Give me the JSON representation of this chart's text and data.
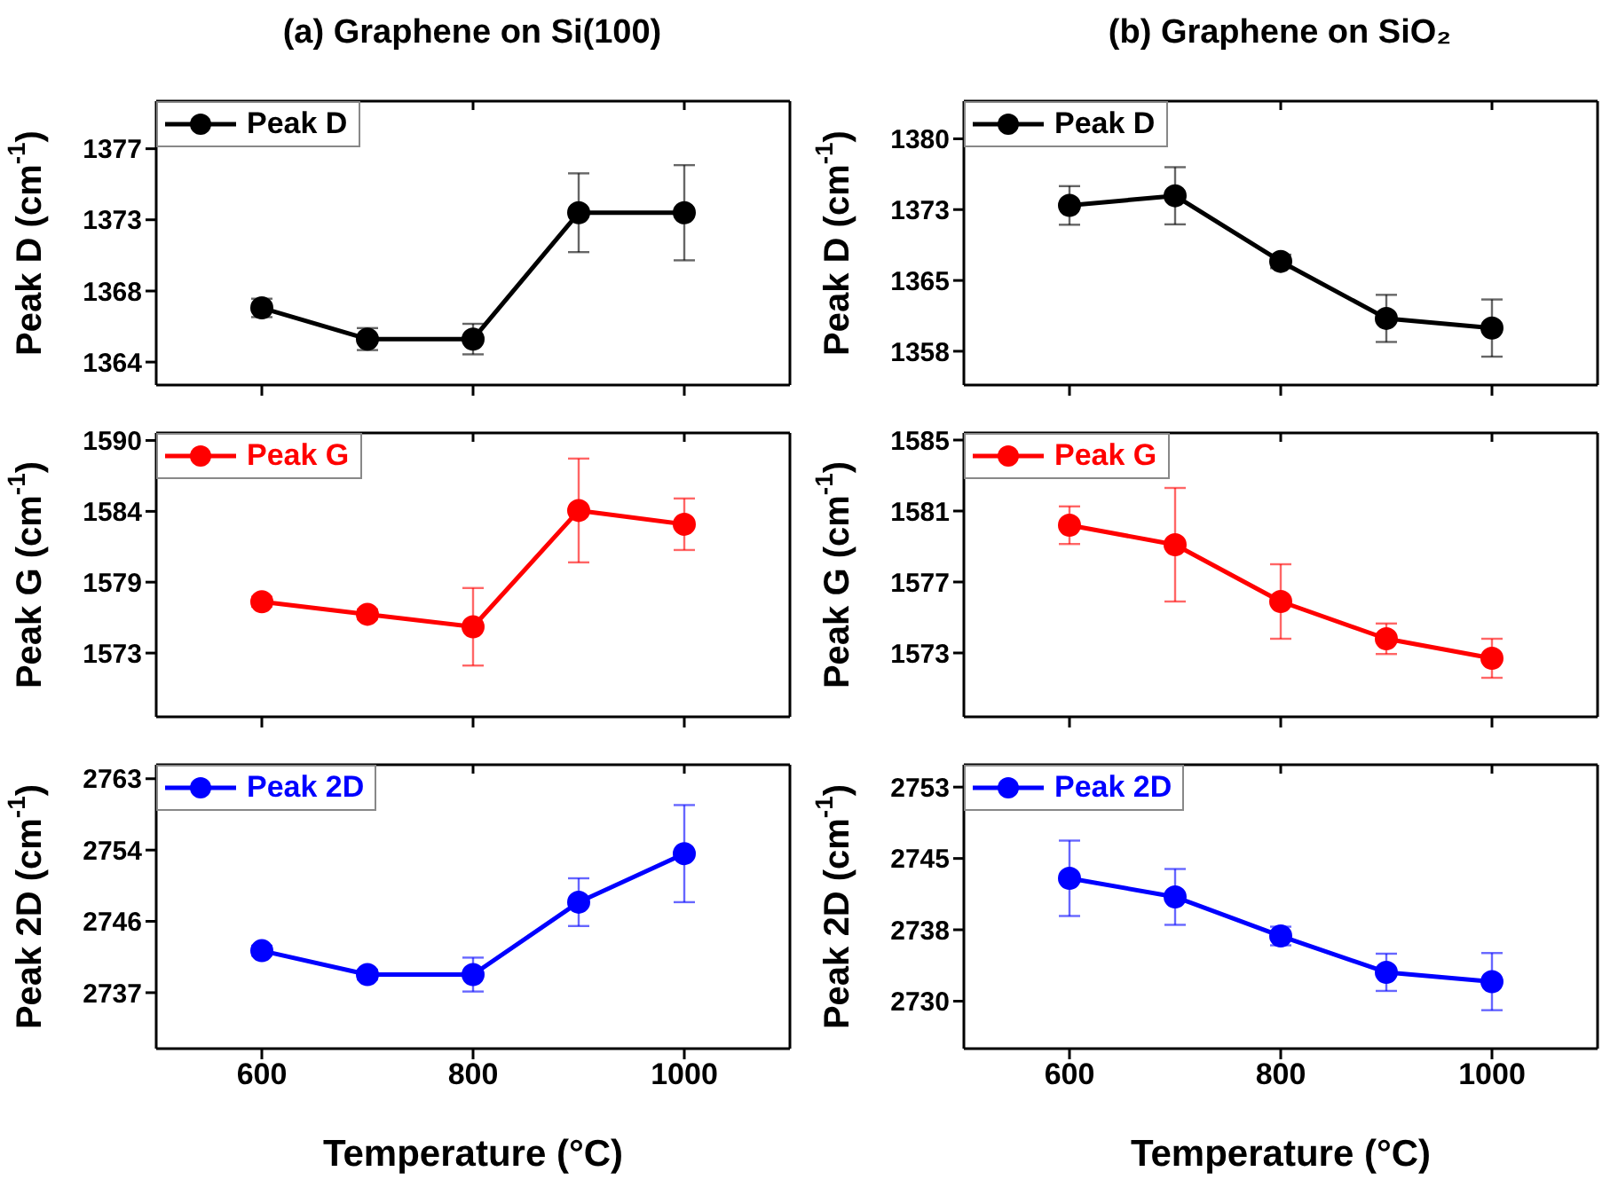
{
  "chart_data": [
    {
      "type": "line",
      "title": "(a) Graphene on Si(100)",
      "ylabel": "Peak D (cm$^{-1}$)",
      "x": [
        600,
        700,
        800,
        900,
        1000
      ],
      "series": [
        {
          "name": "Peak D",
          "color": "#000000",
          "values": [
            1367.3,
            1365.4,
            1365.4,
            1373.1,
            1373.1
          ],
          "errors": [
            0.56,
            0.67,
            0.93,
            2.4,
            2.9
          ]
        }
      ],
      "xlim": [
        500,
        1100
      ],
      "xticks": [
        600,
        800,
        1000
      ],
      "ylim": [
        1362.6,
        1379.9
      ],
      "yticks": [
        {
          "value": 1364,
          "label": "1364"
        },
        {
          "value": 1368.33,
          "label": "1368"
        },
        {
          "value": 1372.67,
          "label": "1373"
        },
        {
          "value": 1377,
          "label": "1377"
        }
      ],
      "marker": "circle",
      "legend": "top left",
      "tick_labels": "y",
      "grid": false
    },
    {
      "type": "line",
      "title": "(b) Graphene on SiO₂",
      "ylabel": "Peak D (cm$^{-1}$)",
      "x": [
        600,
        700,
        800,
        900,
        1000
      ],
      "series": [
        {
          "name": "Peak D",
          "color": "#000000",
          "values": [
            1373.1,
            1374.1,
            1367.3,
            1361.4,
            1360.4
          ],
          "errors": [
            2.0,
            2.96,
            0.7,
            2.44,
            2.96
          ]
        }
      ],
      "xlim": [
        500,
        1100
      ],
      "xticks": [
        600,
        800,
        1000
      ],
      "ylim": [
        1354.5,
        1383.9
      ],
      "yticks": [
        {
          "value": 1358,
          "label": "1358"
        },
        {
          "value": 1365.33,
          "label": "1365"
        },
        {
          "value": 1372.67,
          "label": "1373"
        },
        {
          "value": 1380,
          "label": "1380"
        }
      ],
      "marker": "circle",
      "legend": "top left",
      "tick_labels": "y",
      "grid": false
    },
    {
      "type": "line",
      "ylabel": "Peak G (cm$^{-1}$)",
      "x": [
        600,
        700,
        800,
        900,
        1000
      ],
      "series": [
        {
          "name": "Peak G",
          "color": "#ff0000",
          "values": [
            1577.1,
            1576.1,
            1575.1,
            1584.4,
            1583.3
          ],
          "errors": [
            0.4,
            0.4,
            3.1,
            4.15,
            2.06
          ]
        }
      ],
      "xlim": [
        500,
        1100
      ],
      "xticks": [
        600,
        800,
        1000
      ],
      "ylim": [
        1567.9,
        1590.6
      ],
      "yticks": [
        {
          "value": 1573,
          "label": "1573"
        },
        {
          "value": 1578.67,
          "label": "1579"
        },
        {
          "value": 1584.33,
          "label": "1584"
        },
        {
          "value": 1590,
          "label": "1590"
        }
      ],
      "marker": "circle",
      "legend": "top left",
      "tick_labels": "y",
      "grid": false
    },
    {
      "type": "line",
      "ylabel": "Peak G (cm$^{-1}$)",
      "x": [
        600,
        700,
        800,
        900,
        1000
      ],
      "series": [
        {
          "name": "Peak G",
          "color": "#ff0000",
          "values": [
            1580.2,
            1579.1,
            1575.9,
            1573.8,
            1572.7
          ],
          "errors": [
            1.06,
            3.2,
            2.1,
            0.86,
            1.1
          ]
        }
      ],
      "xlim": [
        500,
        1100
      ],
      "xticks": [
        600,
        800,
        1000
      ],
      "ylim": [
        1569.4,
        1585.4
      ],
      "yticks": [
        1573,
        1577,
        1581,
        1585
      ],
      "marker": "circle",
      "legend": "top left",
      "tick_labels": "y",
      "grid": false
    },
    {
      "type": "line",
      "ylabel": "Peak 2D (cm$^{-1}$)",
      "xlabel": "Temperature (°C)",
      "x": [
        600,
        700,
        800,
        900,
        1000
      ],
      "series": [
        {
          "name": "Peak 2D",
          "color": "#0000ff",
          "values": [
            2742.1,
            2739.2,
            2739.2,
            2748.0,
            2753.9
          ],
          "errors": [
            0.6,
            0.6,
            2.06,
            2.9,
            5.9
          ]
        }
      ],
      "xlim": [
        500,
        1100
      ],
      "xticks": [
        600,
        800,
        1000
      ],
      "ylim": [
        2730.2,
        2764.7
      ],
      "yticks": [
        {
          "value": 2737,
          "label": "2737"
        },
        {
          "value": 2745.67,
          "label": "2746"
        },
        {
          "value": 2754.33,
          "label": "2754"
        },
        {
          "value": 2763,
          "label": "2763"
        }
      ],
      "marker": "circle",
      "legend": "top left",
      "grid": false
    },
    {
      "type": "line",
      "ylabel": "Peak 2D (cm$^{-1}$)",
      "xlabel": "Temperature (°C)",
      "x": [
        600,
        700,
        800,
        900,
        1000
      ],
      "series": [
        {
          "name": "Peak 2D",
          "color": "#0000ff",
          "values": [
            2743.2,
            2741.2,
            2737.0,
            2733.1,
            2732.1
          ],
          "errors": [
            4.05,
            3.0,
            1.0,
            2.0,
            3.07
          ]
        }
      ],
      "xlim": [
        500,
        1100
      ],
      "xticks": [
        600,
        800,
        1000
      ],
      "ylim": [
        2724.9,
        2755.4
      ],
      "yticks": [
        {
          "value": 2730,
          "label": "2730"
        },
        {
          "value": 2737.67,
          "label": "2738"
        },
        {
          "value": 2745.33,
          "label": "2745"
        },
        {
          "value": 2753,
          "label": "2753"
        }
      ],
      "marker": "circle",
      "legend": "top left",
      "grid": false
    }
  ]
}
